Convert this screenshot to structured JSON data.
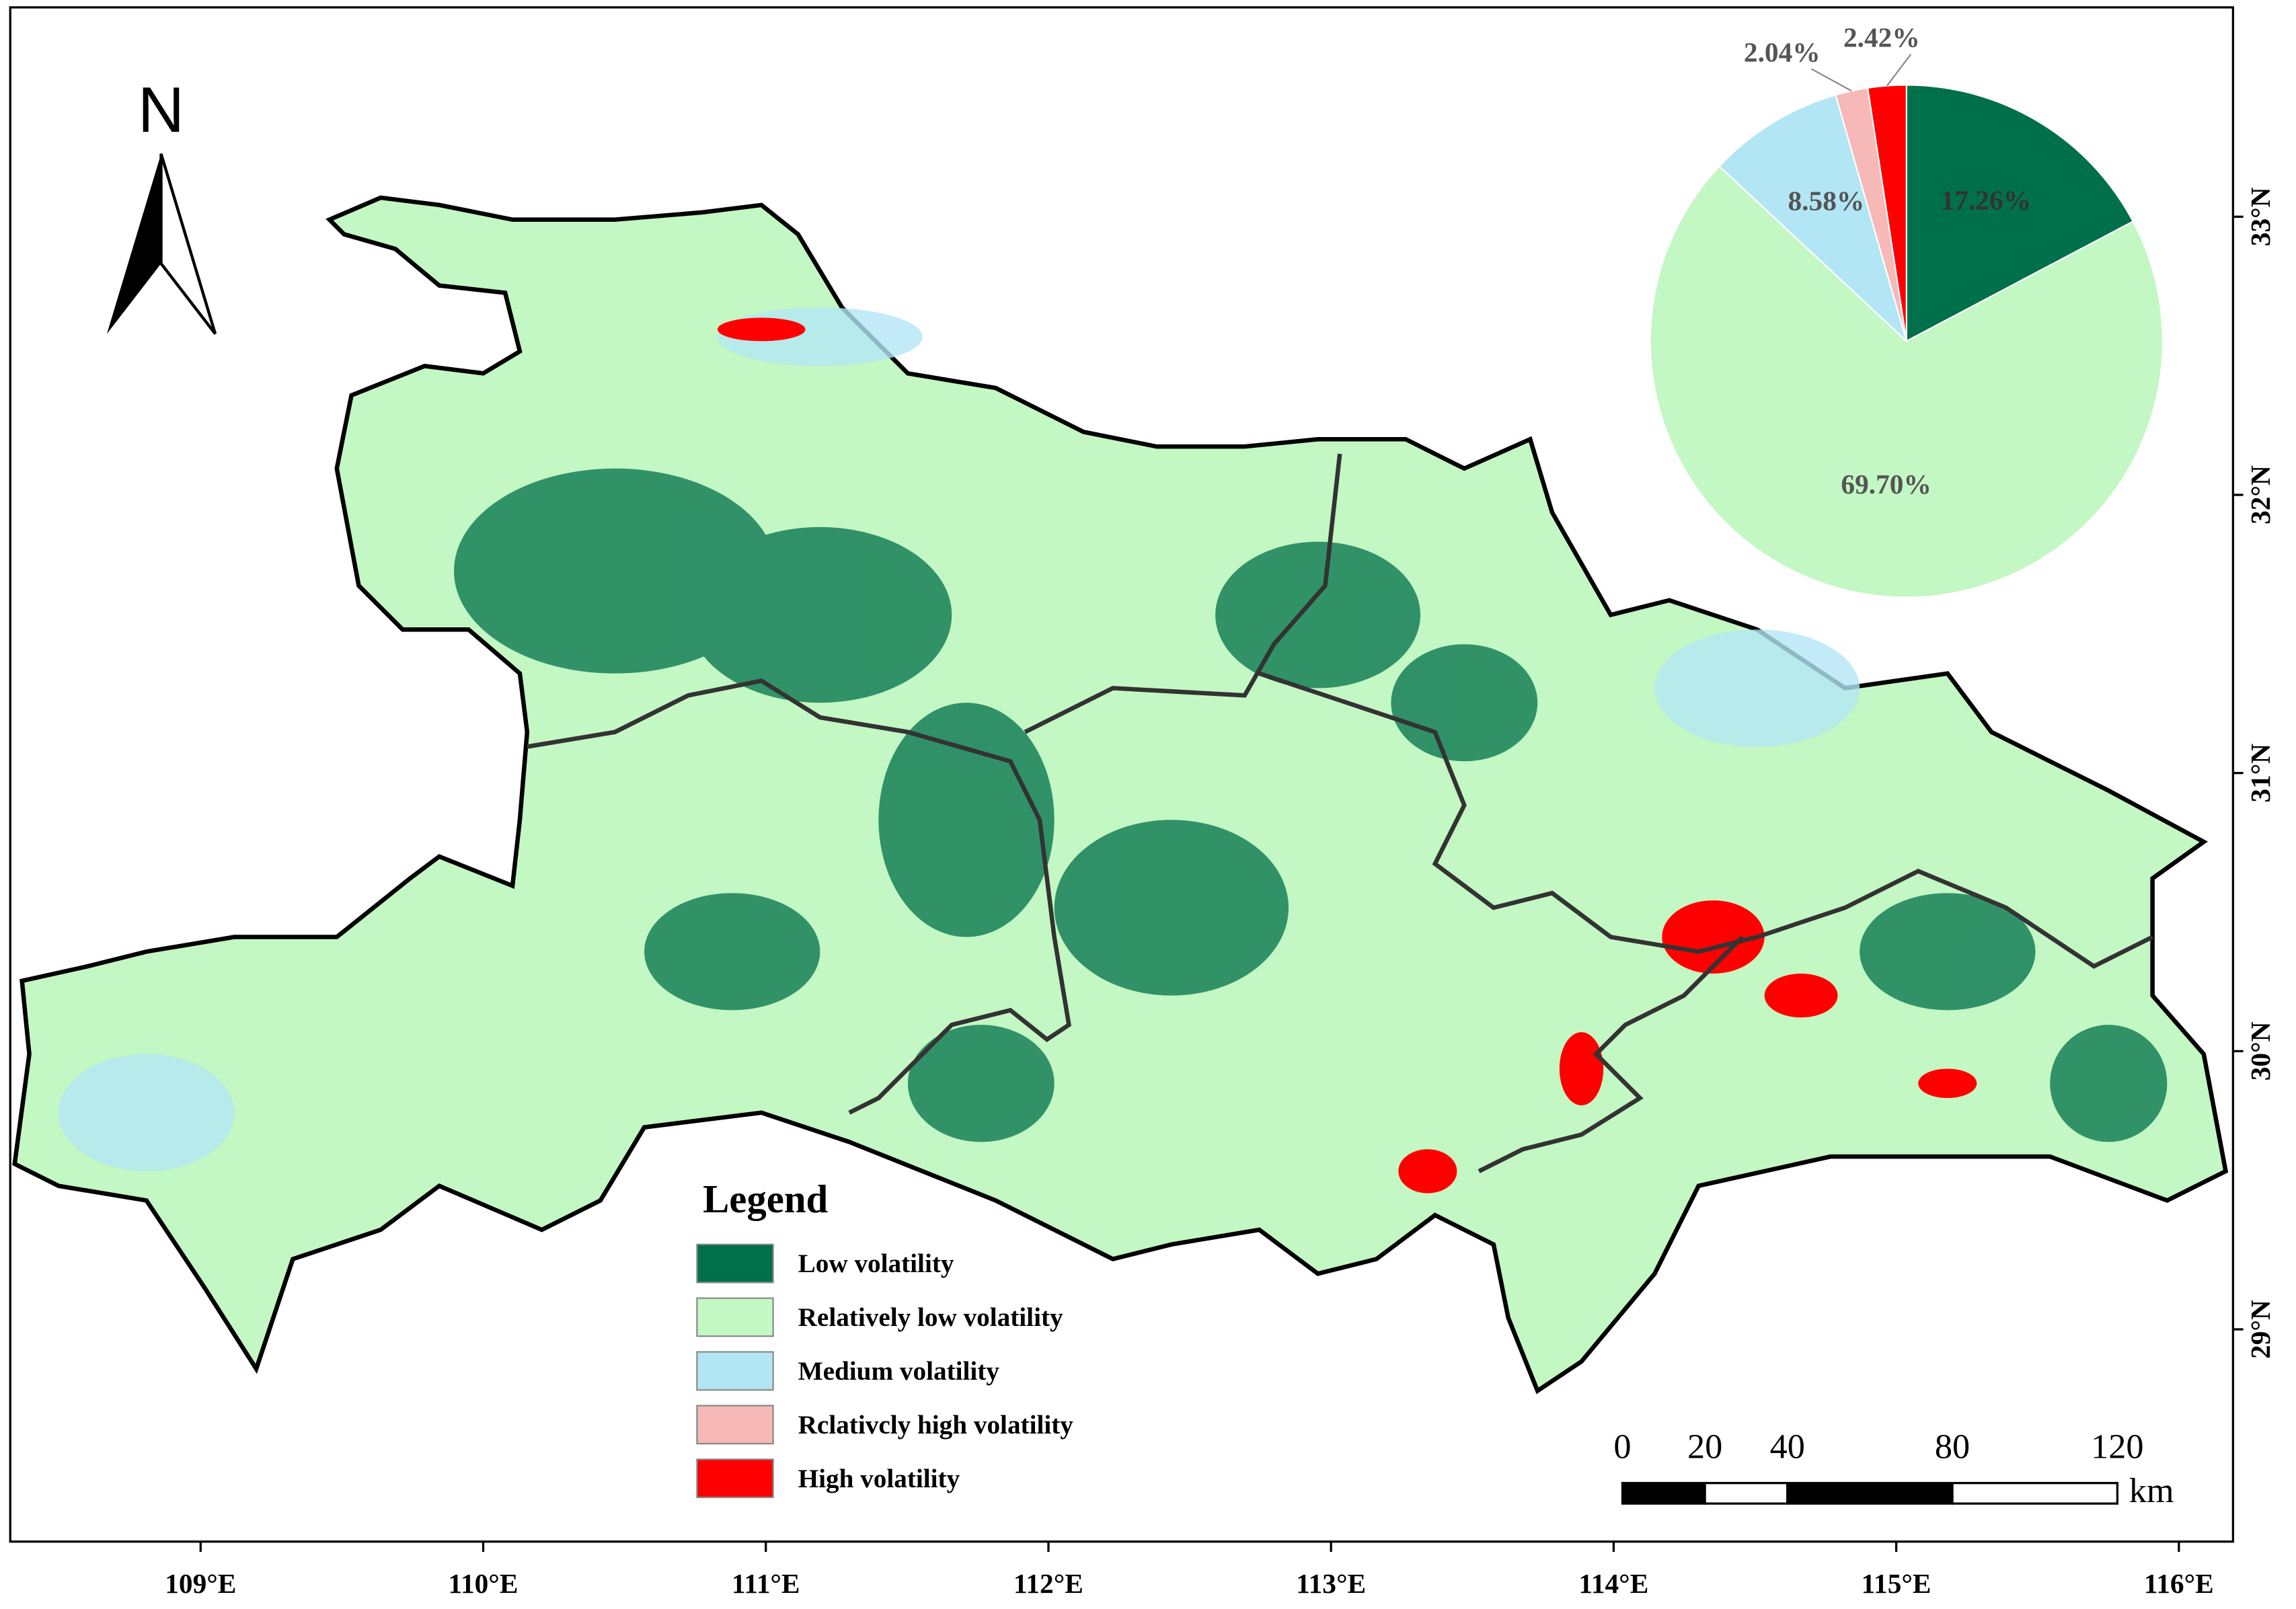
{
  "map": {
    "north": "N",
    "legend_title": "Legend",
    "lon_ticks": [
      {
        "value": 109,
        "label": "109°E"
      },
      {
        "value": 110,
        "label": "110°E"
      },
      {
        "value": 111,
        "label": "111°E"
      },
      {
        "value": 112,
        "label": "112°E"
      },
      {
        "value": 113,
        "label": "113°E"
      },
      {
        "value": 114,
        "label": "114°E"
      },
      {
        "value": 115,
        "label": "115°E"
      },
      {
        "value": 116,
        "label": "116°E"
      }
    ],
    "lat_ticks": [
      {
        "value": 29,
        "label": "29°N"
      },
      {
        "value": 30,
        "label": "30°N"
      },
      {
        "value": 31,
        "label": "31°N"
      },
      {
        "value": 32,
        "label": "32°N"
      },
      {
        "value": 33,
        "label": "33°N"
      }
    ],
    "scale_bar": {
      "ticks": [
        0,
        20,
        40,
        80,
        120
      ],
      "unit": "km"
    }
  },
  "chart_data": {
    "type": "pie",
    "categories": [
      "Low volatility",
      "Relatively low volatility",
      "Medium volatility",
      "Rclativcly high volatility",
      "High volatility"
    ],
    "values": [
      17.26,
      69.7,
      8.58,
      2.04,
      2.42
    ],
    "value_labels": [
      "17.26%",
      "69.70%",
      "8.58%",
      "2.04%",
      "2.42%"
    ],
    "colors": [
      "#00704a",
      "#c3f7c3",
      "#b3e6f5",
      "#f7b8b8",
      "#ff0000"
    ]
  }
}
